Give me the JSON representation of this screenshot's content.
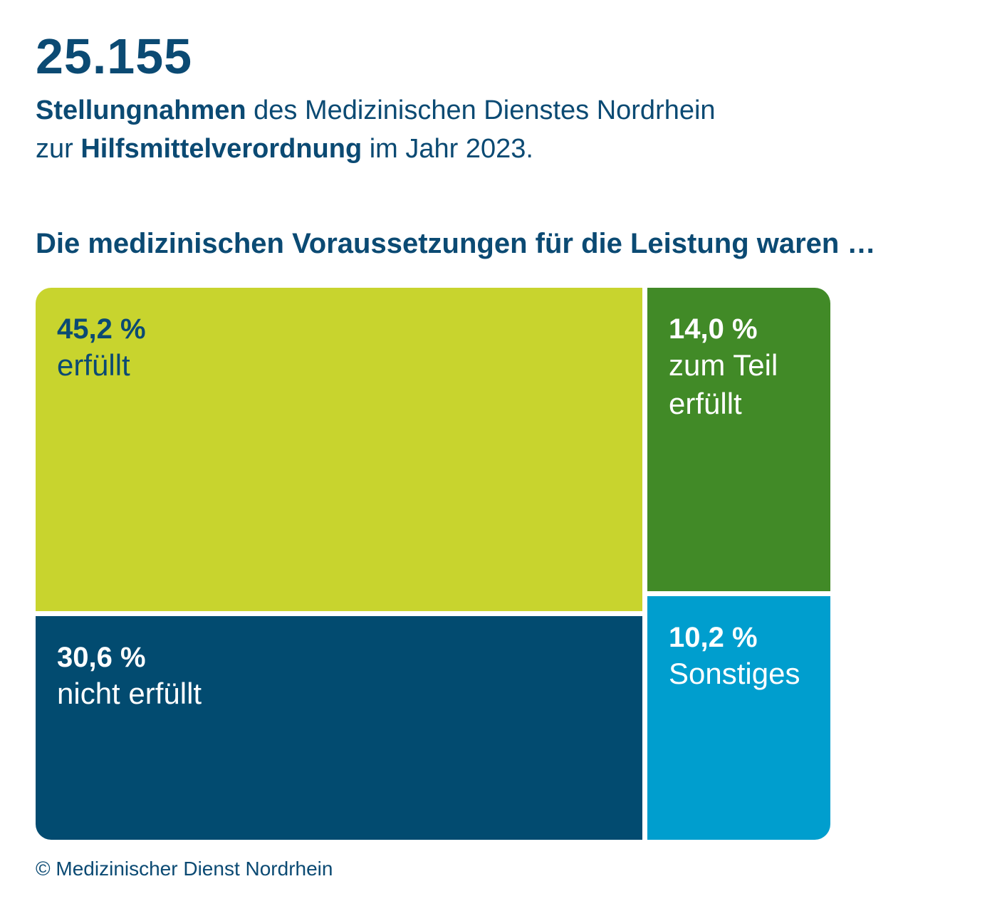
{
  "header": {
    "total": "25.155",
    "subtitle_bold_1": "Stellungnahmen",
    "subtitle_text_1": " des Medizinischen Dienstes Nordrhein",
    "subtitle_text_2": "zur ",
    "subtitle_bold_2": "Hilfsmittelverordnung",
    "subtitle_text_3": " im Jahr 2023."
  },
  "chart_data": {
    "type": "treemap",
    "title": "Die medizinischen Voraussetzungen für die Leistung waren …",
    "categories": [
      "erfüllt",
      "nicht erfüllt",
      "zum Teil erfüllt",
      "Sonstiges"
    ],
    "values": [
      45.2,
      30.6,
      14.0,
      10.2
    ],
    "value_labels": [
      "45,2 %",
      "30,6 %",
      "14,0 %",
      "10,2 %"
    ],
    "unit": "%",
    "colors": [
      "#c8d42e",
      "#024b70",
      "#418a27",
      "#009ece"
    ]
  },
  "footer": {
    "copyright": "© Medizinischer Dienst Nordrhein"
  }
}
